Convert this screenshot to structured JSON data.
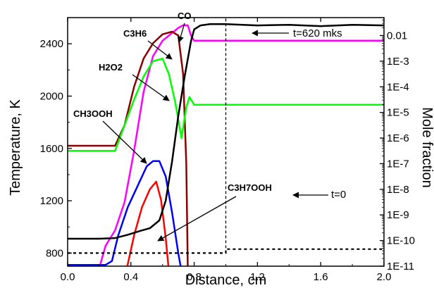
{
  "chart_data": {
    "type": "line",
    "xlabel": "Distance, cm",
    "ylabel_left": "Temperature, K",
    "ylabel_right": "Mole fraction",
    "xlim": [
      0.0,
      2.0
    ],
    "ylim_left": [
      700,
      2600
    ],
    "ylim_right_log10": [
      -11,
      -1.3
    ],
    "x_ticks": [
      "0.0",
      "0.4",
      "0.8",
      "1.2",
      "1.6",
      "2.0"
    ],
    "y_ticks_left": [
      "800",
      "1200",
      "1600",
      "2000",
      "2400"
    ],
    "y_ticks_right": [
      "0.01",
      "1E-3",
      "1E-4",
      "1E-5",
      "1E-6",
      "1E-7",
      "1E-8",
      "1E-9",
      "1E-10",
      "1E-11"
    ],
    "series": [
      {
        "name": "CO",
        "color": "#ff00ff",
        "x": [
          0.18,
          0.24,
          0.3,
          0.36,
          0.42,
          0.48,
          0.54,
          0.6,
          0.66,
          0.7,
          0.73,
          0.76,
          0.78,
          0.8,
          0.85,
          1.0,
          1.2,
          1.6,
          2.0
        ],
        "log10": [
          -11.5,
          -10.2,
          -9.6,
          -8.5,
          -6.5,
          -4.2,
          -2.8,
          -2.2,
          -1.9,
          -1.7,
          -1.6,
          -1.6,
          -2.0,
          -2.2,
          -2.2,
          -2.2,
          -2.2,
          -2.2,
          -2.2
        ]
      },
      {
        "name": "C3H6",
        "color": "#8b0000",
        "x": [
          0.0,
          0.3,
          0.36,
          0.42,
          0.48,
          0.54,
          0.6,
          0.66,
          0.7,
          0.73,
          0.75,
          0.76
        ],
        "log10": [
          -6.3,
          -6.3,
          -5.5,
          -4.0,
          -2.9,
          -2.3,
          -1.95,
          -1.85,
          -2.0,
          -3.5,
          -7.0,
          -11.2
        ]
      },
      {
        "name": "H2O2",
        "color": "#00ff00",
        "x": [
          0.0,
          0.3,
          0.36,
          0.42,
          0.48,
          0.54,
          0.6,
          0.64,
          0.68,
          0.72,
          0.75,
          0.77,
          0.8,
          0.9,
          1.2,
          1.6,
          2.0
        ],
        "log10": [
          -6.5,
          -6.5,
          -5.5,
          -4.5,
          -3.6,
          -3.0,
          -2.9,
          -3.5,
          -4.6,
          -6.0,
          -4.8,
          -4.4,
          -4.7,
          -4.7,
          -4.7,
          -4.7,
          -4.7
        ]
      },
      {
        "name": "CH3OOH",
        "color": "#0000ff",
        "x": [
          0.0,
          0.24,
          0.28,
          0.32,
          0.38,
          0.44,
          0.5,
          0.54,
          0.58,
          0.62,
          0.66,
          0.7,
          0.72
        ],
        "log10": [
          -10.95,
          -10.95,
          -10.8,
          -9.8,
          -8.7,
          -7.9,
          -7.1,
          -6.9,
          -6.9,
          -7.5,
          -8.9,
          -10.5,
          -11.2
        ]
      },
      {
        "name": "C3H7OOH",
        "color": "#ff0000",
        "x": [
          0.37,
          0.42,
          0.47,
          0.52,
          0.56,
          0.59,
          0.62,
          0.64
        ],
        "log10": [
          -11.2,
          -9.8,
          -8.7,
          -8.0,
          -7.7,
          -8.4,
          -9.9,
          -11.2
        ]
      },
      {
        "name": "Temperature t=620 mks",
        "color": "#000000",
        "x": [
          0.0,
          0.1,
          0.2,
          0.3,
          0.38,
          0.46,
          0.52,
          0.58,
          0.62,
          0.66,
          0.7,
          0.74,
          0.78,
          0.8,
          0.84,
          0.9,
          1.0,
          1.2,
          1.4,
          1.6,
          1.8,
          2.0
        ],
        "y": [
          910,
          910,
          910,
          915,
          940,
          970,
          990,
          1050,
          1200,
          1500,
          1850,
          2150,
          2420,
          2510,
          2540,
          2550,
          2550,
          2540,
          2545,
          2535,
          2545,
          2540
        ]
      },
      {
        "name": "Temperature t=0",
        "color": "#000000",
        "dashed": true,
        "x": [
          0.0,
          1.0,
          1.0,
          2.0
        ],
        "y": [
          800,
          800,
          830,
          830
        ]
      }
    ],
    "divider": {
      "x": 1.0,
      "y_from": 800,
      "y_to": 2600
    },
    "annotations": [
      {
        "text": "CO"
      },
      {
        "text": "C3H6"
      },
      {
        "text": "H2O2"
      },
      {
        "text": "CH3OOH"
      },
      {
        "text": "C3H7OOH"
      },
      {
        "text": "t=620 mks"
      },
      {
        "text": "t=0"
      }
    ]
  }
}
